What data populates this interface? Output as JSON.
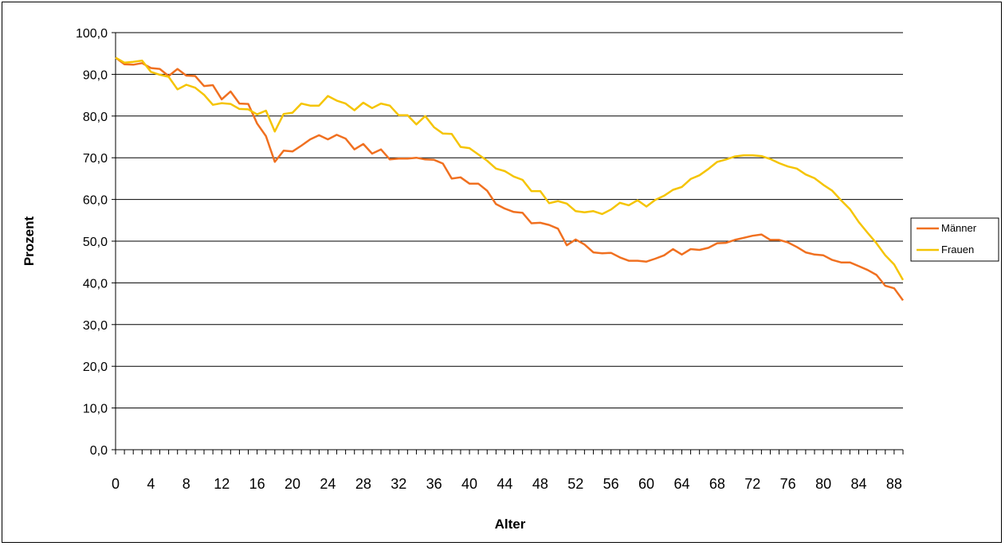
{
  "chart_data": {
    "type": "line",
    "title": "",
    "xlabel": "Alter",
    "ylabel": "Prozent",
    "xlim": [
      0,
      89
    ],
    "ylim": [
      0,
      100
    ],
    "ytick_step": 10,
    "ytick_labels": [
      "0,0",
      "10,0",
      "20,0",
      "30,0",
      "40,0",
      "50,0",
      "60,0",
      "70,0",
      "80,0",
      "90,0",
      "100,0"
    ],
    "xtick_labels": [
      "0",
      "4",
      "8",
      "12",
      "16",
      "20",
      "24",
      "28",
      "32",
      "36",
      "40",
      "44",
      "48",
      "52",
      "56",
      "60",
      "64",
      "68",
      "72",
      "76",
      "80",
      "84",
      "88"
    ],
    "xtick_step": 4,
    "grid": true,
    "legend_position": "right",
    "series": [
      {
        "name": "Männer",
        "color": "#f07020",
        "values": [
          94.0,
          92.4,
          92.3,
          92.7,
          91.5,
          91.3,
          89.6,
          91.3,
          89.7,
          89.6,
          87.2,
          87.4,
          84.0,
          85.9,
          83.0,
          82.9,
          78.2,
          75.2,
          69.0,
          71.7,
          71.5,
          72.9,
          74.4,
          75.4,
          74.4,
          75.5,
          74.6,
          72.0,
          73.3,
          71.0,
          72.0,
          69.6,
          69.8,
          69.8,
          70.0,
          69.6,
          69.5,
          68.6,
          65.0,
          65.3,
          63.8,
          63.8,
          62.1,
          58.9,
          57.8,
          57.0,
          56.8,
          54.3,
          54.4,
          53.9,
          53.0,
          49.0,
          50.4,
          49.2,
          47.3,
          47.1,
          47.2,
          46.1,
          45.3,
          45.3,
          45.1,
          45.8,
          46.6,
          48.1,
          46.8,
          48.1,
          47.9,
          48.4,
          49.5,
          49.6,
          50.3,
          50.8,
          51.3,
          51.6,
          50.3,
          50.3,
          49.7,
          48.6,
          47.3,
          46.8,
          46.6,
          45.5,
          44.9,
          44.9,
          44.0,
          43.1,
          41.9,
          39.3,
          38.7,
          35.8
        ]
      },
      {
        "name": "Frauen",
        "color": "#f5c400",
        "values": [
          94.0,
          92.8,
          93.0,
          93.3,
          90.6,
          89.9,
          89.4,
          86.4,
          87.5,
          86.8,
          85.1,
          82.7,
          83.1,
          82.9,
          81.7,
          81.6,
          80.4,
          81.3,
          76.3,
          80.5,
          80.8,
          83.0,
          82.5,
          82.5,
          84.8,
          83.7,
          83.0,
          81.4,
          83.2,
          81.9,
          83.0,
          82.5,
          80.2,
          80.2,
          78.0,
          80.0,
          77.3,
          75.8,
          75.7,
          72.6,
          72.3,
          70.8,
          69.3,
          67.4,
          66.8,
          65.5,
          64.7,
          62.0,
          62.0,
          59.1,
          59.6,
          59.0,
          57.2,
          56.9,
          57.2,
          56.5,
          57.6,
          59.2,
          58.6,
          59.8,
          58.3,
          59.9,
          60.9,
          62.3,
          63.0,
          64.9,
          65.8,
          67.3,
          69.0,
          69.6,
          70.3,
          70.6,
          70.6,
          70.4,
          69.7,
          68.7,
          67.9,
          67.4,
          66.0,
          65.1,
          63.5,
          62.1,
          59.8,
          57.7,
          54.6,
          52.0,
          49.5,
          46.6,
          44.4,
          40.7
        ]
      }
    ]
  }
}
